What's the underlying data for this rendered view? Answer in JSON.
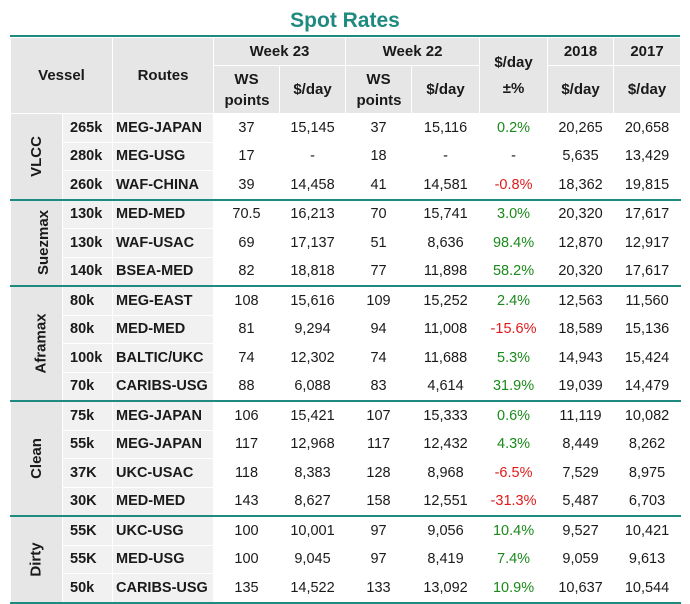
{
  "title": "Spot Rates",
  "headers": {
    "vessel": "Vessel",
    "routes": "Routes",
    "week23": "Week 23",
    "week22": "Week 22",
    "change": "$/day ±%",
    "y2018": "2018",
    "y2017": "2017",
    "ws_points": "WS points",
    "per_day": "$/day"
  },
  "groups": [
    {
      "name": "VLCC",
      "rows": [
        {
          "size": "265k",
          "route": "MEG-JAPAN",
          "ws23": "37",
          "d23": "15,145",
          "ws22": "37",
          "d22": "15,116",
          "chg": "0.2%",
          "sign": "pos",
          "y2018": "20,265",
          "y2017": "20,658"
        },
        {
          "size": "280k",
          "route": "MEG-USG",
          "ws23": "17",
          "d23": "-",
          "ws22": "18",
          "d22": "-",
          "chg": "-",
          "sign": "none",
          "y2018": "5,635",
          "y2017": "13,429"
        },
        {
          "size": "260k",
          "route": "WAF-CHINA",
          "ws23": "39",
          "d23": "14,458",
          "ws22": "41",
          "d22": "14,581",
          "chg": "-0.8%",
          "sign": "neg",
          "y2018": "18,362",
          "y2017": "19,815"
        }
      ]
    },
    {
      "name": "Suezmax",
      "rows": [
        {
          "size": "130k",
          "route": "MED-MED",
          "ws23": "70.5",
          "d23": "16,213",
          "ws22": "70",
          "d22": "15,741",
          "chg": "3.0%",
          "sign": "pos",
          "y2018": "20,320",
          "y2017": "17,617"
        },
        {
          "size": "130k",
          "route": "WAF-USAC",
          "ws23": "69",
          "d23": "17,137",
          "ws22": "51",
          "d22": "8,636",
          "chg": "98.4%",
          "sign": "pos",
          "y2018": "12,870",
          "y2017": "12,917"
        },
        {
          "size": "140k",
          "route": "BSEA-MED",
          "ws23": "82",
          "d23": "18,818",
          "ws22": "77",
          "d22": "11,898",
          "chg": "58.2%",
          "sign": "pos",
          "y2018": "20,320",
          "y2017": "17,617"
        }
      ]
    },
    {
      "name": "Aframax",
      "rows": [
        {
          "size": "80k",
          "route": "MEG-EAST",
          "ws23": "108",
          "d23": "15,616",
          "ws22": "109",
          "d22": "15,252",
          "chg": "2.4%",
          "sign": "pos",
          "y2018": "12,563",
          "y2017": "11,560"
        },
        {
          "size": "80k",
          "route": "MED-MED",
          "ws23": "81",
          "d23": "9,294",
          "ws22": "94",
          "d22": "11,008",
          "chg": "-15.6%",
          "sign": "neg",
          "y2018": "18,589",
          "y2017": "15,136"
        },
        {
          "size": "100k",
          "route": "BALTIC/UKC",
          "ws23": "74",
          "d23": "12,302",
          "ws22": "74",
          "d22": "11,688",
          "chg": "5.3%",
          "sign": "pos",
          "y2018": "14,943",
          "y2017": "15,424"
        },
        {
          "size": "70k",
          "route": "CARIBS-USG",
          "ws23": "88",
          "d23": "6,088",
          "ws22": "83",
          "d22": "4,614",
          "chg": "31.9%",
          "sign": "pos",
          "y2018": "19,039",
          "y2017": "14,479"
        }
      ]
    },
    {
      "name": "Clean",
      "rows": [
        {
          "size": "75k",
          "route": "MEG-JAPAN",
          "ws23": "106",
          "d23": "15,421",
          "ws22": "107",
          "d22": "15,333",
          "chg": "0.6%",
          "sign": "pos",
          "y2018": "11,119",
          "y2017": "10,082"
        },
        {
          "size": "55k",
          "route": "MEG-JAPAN",
          "ws23": "117",
          "d23": "12,968",
          "ws22": "117",
          "d22": "12,432",
          "chg": "4.3%",
          "sign": "pos",
          "y2018": "8,449",
          "y2017": "8,262"
        },
        {
          "size": "37K",
          "route": "UKC-USAC",
          "ws23": "118",
          "d23": "8,383",
          "ws22": "128",
          "d22": "8,968",
          "chg": "-6.5%",
          "sign": "neg",
          "y2018": "7,529",
          "y2017": "8,975"
        },
        {
          "size": "30K",
          "route": "MED-MED",
          "ws23": "143",
          "d23": "8,627",
          "ws22": "158",
          "d22": "12,551",
          "chg": "-31.3%",
          "sign": "neg",
          "y2018": "5,487",
          "y2017": "6,703"
        }
      ]
    },
    {
      "name": "Dirty",
      "rows": [
        {
          "size": "55K",
          "route": "UKC-USG",
          "ws23": "100",
          "d23": "10,001",
          "ws22": "97",
          "d22": "9,056",
          "chg": "10.4%",
          "sign": "pos",
          "y2018": "9,527",
          "y2017": "10,421"
        },
        {
          "size": "55K",
          "route": "MED-USG",
          "ws23": "100",
          "d23": "9,045",
          "ws22": "97",
          "d22": "8,419",
          "chg": "7.4%",
          "sign": "pos",
          "y2018": "9,059",
          "y2017": "9,613"
        },
        {
          "size": "50k",
          "route": "CARIBS-USG",
          "ws23": "135",
          "d23": "14,522",
          "ws22": "133",
          "d22": "13,092",
          "chg": "10.9%",
          "sign": "pos",
          "y2018": "10,637",
          "y2017": "10,544"
        }
      ]
    }
  ],
  "colors": {
    "accent": "#1f8a80",
    "positive": "#1a8a1a",
    "negative": "#e01a1a",
    "header_bg": "#e6e6e6"
  }
}
